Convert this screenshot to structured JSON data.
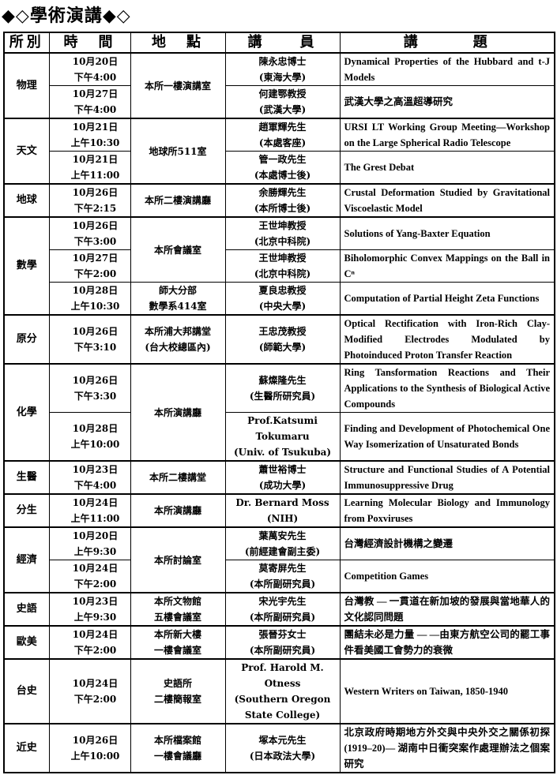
{
  "title": "◆◇學術演講◆◇",
  "headers": [
    "所別",
    "時　間",
    "地　點",
    "講　　員",
    "講　　　題"
  ],
  "groups": [
    {
      "dept": "物理",
      "sessions": [
        {
          "date": "10月20日",
          "time": "下午4:00",
          "location": [
            "本所一樓演講室"
          ],
          "speaker": [
            "陳永忠博士",
            "(東海大學)"
          ],
          "topic": "Dynamical Properties of the Hubbard and t-J Models"
        },
        {
          "date": "10月27日",
          "time": "下午4:00",
          "location": null,
          "speaker": [
            "何建鄂教授",
            "(武漢大學)"
          ],
          "topic": "武漢大學之高溫超導研究"
        }
      ]
    },
    {
      "dept": "天文",
      "sessions": [
        {
          "date": "10月21日",
          "time": "上午10:30",
          "location": [
            "地球所511室"
          ],
          "speaker": [
            "趙軍輝先生",
            "(本處客座)"
          ],
          "topic": "URSI LT Working Group Meeting—Workshop on the Large Spherical Radio Telescope"
        },
        {
          "date": "10月21日",
          "time": "上午11:00",
          "location": null,
          "speaker": [
            "管一政先生",
            "(本處博士後)"
          ],
          "topic": "The Grest Debat"
        }
      ]
    },
    {
      "dept": "地球",
      "sessions": [
        {
          "date": "10月26日",
          "time": "下午2:15",
          "location": [
            "本所二樓演講廳"
          ],
          "speaker": [
            "余勝輝先生",
            "(本所博士後)"
          ],
          "topic": "Crustal Deformation Studied by Gravitational Viscoelastic Model"
        }
      ]
    },
    {
      "dept": "數學",
      "sessions": [
        {
          "date": "10月26日",
          "time": "下午3:00",
          "location": [
            "本所會議室"
          ],
          "speaker": [
            "王世坤教授",
            "(北京中科院)"
          ],
          "topic": "Solutions of Yang-Baxter Equation"
        },
        {
          "date": "10月27日",
          "time": "下午2:00",
          "location": null,
          "speaker": [
            "王世坤教授",
            "(北京中科院)"
          ],
          "topic": "Biholomorphic Convex Mappings on the Ball in Cⁿ"
        },
        {
          "date": "10月28日",
          "time": "上午10:30",
          "location": [
            "師大分部",
            "數學系414室"
          ],
          "speaker": [
            "夏良忠教授",
            "(中央大學)"
          ],
          "topic": "Computation of Partial Height Zeta Functions"
        }
      ]
    },
    {
      "dept": "原分",
      "sessions": [
        {
          "date": "10月26日",
          "time": "下午3:10",
          "location": [
            "本所浦大邦講堂",
            "(台大校總區內)"
          ],
          "speaker": [
            "王忠茂教授",
            "(師範大學)"
          ],
          "topic": "Optical Rectification with Iron-Rich Clay-Modified Electrodes Modulated by Photoinduced Proton Transfer Reaction"
        }
      ]
    },
    {
      "dept": "化學",
      "sessions": [
        {
          "date": "10月26日",
          "time": "下午3:30",
          "location": [
            "本所演講廳"
          ],
          "speaker": [
            "蘇燦隆先生",
            "(生醫所研究員)"
          ],
          "topic": "Ring Tansformation Reactions and Their Applications to the Synthesis of Biological Active Compounds"
        },
        {
          "date": "10月28日",
          "time": "上午10:00",
          "location": null,
          "speaker": [
            "Prof.Katsumi",
            "Tokumaru",
            "(Univ. of Tsukuba)"
          ],
          "topic": "Finding and Development of Photochemical One Way Isomerization of Unsaturated Bonds"
        }
      ]
    },
    {
      "dept": "生醫",
      "sessions": [
        {
          "date": "10月23日",
          "time": "下午4:00",
          "location": [
            "本所二樓講堂"
          ],
          "speaker": [
            "蕭世裕博士",
            "(成功大學)"
          ],
          "topic": "Structure and Functional Studies of A Potential Immunosuppressive Drug"
        }
      ]
    },
    {
      "dept": "分生",
      "sessions": [
        {
          "date": "10月24日",
          "time": "上午11:00",
          "location": [
            "本所演講廳"
          ],
          "speaker": [
            "Dr. Bernard Moss",
            "(NIH)"
          ],
          "topic": "Learning Molecular Biology and Immunology from Poxviruses"
        }
      ]
    },
    {
      "dept": "經濟",
      "sessions": [
        {
          "date": "10月20日",
          "time": "上午9:30",
          "location": [
            "本所討論室"
          ],
          "speaker": [
            "葉萬安先生",
            "(前經建會副主委)"
          ],
          "topic": "台灣經濟設計機構之變遷"
        },
        {
          "date": "10月24日",
          "time": "下午2:00",
          "location": null,
          "speaker": [
            "莫寄屏先生",
            "(本所副研究員)"
          ],
          "topic": "Competition Games"
        }
      ]
    },
    {
      "dept": "史語",
      "sessions": [
        {
          "date": "10月23日",
          "time": "上午9:30",
          "location": [
            "本所文物館",
            "五樓會議室"
          ],
          "speaker": [
            "宋光宇先生",
            "(本所副研究員)"
          ],
          "topic": "台灣教 — 一貫道在新加坡的發展與當地華人的文化認同問題"
        }
      ]
    },
    {
      "dept": "歐美",
      "sessions": [
        {
          "date": "10月24日",
          "time": "下午2:00",
          "location": [
            "本所新大樓",
            "一樓會議室"
          ],
          "speaker": [
            "張晉芬女士",
            "(本所副研究員)"
          ],
          "topic": "團結未必是力量 — —由東方航空公司的罷工事件看美國工會勢力的衰微"
        }
      ]
    },
    {
      "dept": "台史",
      "sessions": [
        {
          "date": "10月24日",
          "time": "下午2:00",
          "location": [
            "史語所",
            "二樓簡報室"
          ],
          "speaker": [
            "Prof. Harold M.",
            "Otness",
            "(Southern Oregon",
            "State College)"
          ],
          "topic": "Western Writers on Taiwan, 1850-1940"
        }
      ]
    },
    {
      "dept": "近史",
      "sessions": [
        {
          "date": "10月26日",
          "time": "上午10:00",
          "location": [
            "本所檔案館",
            "一樓會議廳"
          ],
          "speaker": [
            "塚本元先生",
            "(日本政法大學)"
          ],
          "topic": "北京政府時期地方外交與中央外交之關係初探(1919–20)— 湖南中日衝突案作處理辦法之個案研究"
        }
      ]
    }
  ]
}
